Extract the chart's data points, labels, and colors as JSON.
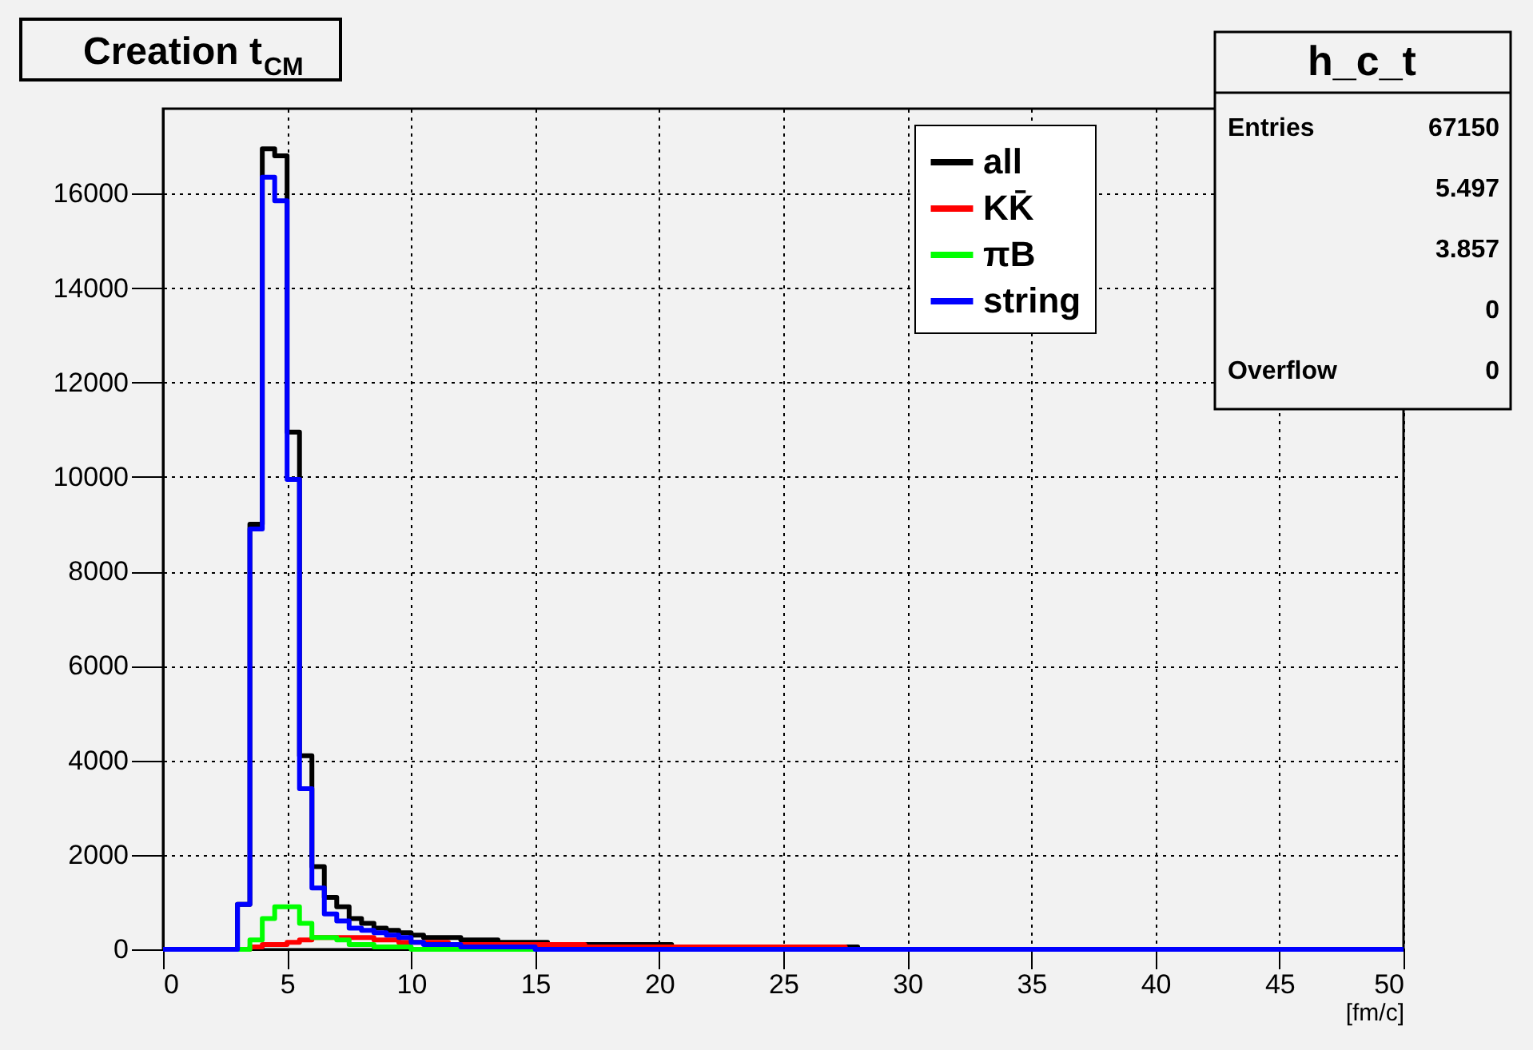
{
  "chart_data": {
    "type": "histogram",
    "title": "Creation t$_{CM}$",
    "xlabel": "[fm/c]",
    "bins": [
      0,
      0.5,
      1,
      1.5,
      2,
      2.5,
      3,
      3.5,
      4,
      4.5,
      5,
      5.5,
      6,
      6.5,
      7,
      7.5,
      8,
      8.5,
      9,
      9.5,
      10,
      10.5,
      11,
      11.5,
      12,
      12.5,
      13,
      13.5,
      14,
      14.5,
      15,
      15.5,
      16,
      16.5,
      17,
      17.5,
      18,
      18.5,
      19,
      19.5,
      20,
      20.5,
      21,
      21.5,
      22,
      22.5,
      23,
      23.5,
      24,
      24.5,
      25,
      25.5,
      26,
      26.5,
      27,
      27.5,
      28,
      28.5,
      29,
      29.5,
      30,
      30.5,
      31,
      31.5,
      32,
      32.5,
      33,
      33.5,
      34,
      34.5,
      35,
      35.5,
      36,
      36.5,
      37,
      37.5,
      38,
      38.5,
      39,
      39.5,
      40,
      40.5,
      41,
      41.5,
      42,
      42.5,
      43,
      43.5,
      44,
      44.5,
      45,
      45.5,
      46,
      46.5,
      47,
      47.5,
      48,
      48.5,
      49,
      49.5,
      50
    ],
    "series": [
      {
        "name": "all",
        "color": "#000000",
        "values": [
          0,
          0,
          0,
          0,
          0,
          0,
          950,
          9000,
          16950,
          16800,
          10950,
          4100,
          1750,
          1100,
          900,
          650,
          550,
          450,
          400,
          350,
          300,
          250,
          250,
          250,
          200,
          200,
          200,
          150,
          150,
          150,
          150,
          100,
          100,
          100,
          100,
          100,
          100,
          100,
          100,
          100,
          100,
          50,
          50,
          50,
          50,
          50,
          50,
          50,
          50,
          50,
          50,
          50,
          50,
          50,
          50,
          50,
          0,
          0,
          0,
          0,
          0,
          0,
          0,
          0,
          0,
          0,
          0,
          0,
          0,
          0,
          0,
          0,
          0,
          0,
          0,
          0,
          0,
          0,
          0,
          0,
          0,
          0,
          0,
          0,
          0,
          0,
          0,
          0,
          0,
          0,
          0,
          0,
          0,
          0,
          0,
          0,
          0,
          0,
          0,
          0
        ]
      },
      {
        "name": "KK̄",
        "color": "#ff0000",
        "values": [
          0,
          0,
          0,
          0,
          0,
          0,
          0,
          50,
          100,
          100,
          150,
          200,
          250,
          250,
          250,
          250,
          250,
          200,
          200,
          150,
          150,
          150,
          150,
          100,
          100,
          100,
          100,
          100,
          100,
          100,
          100,
          100,
          100,
          100,
          50,
          50,
          50,
          50,
          50,
          50,
          50,
          50,
          50,
          50,
          50,
          50,
          50,
          50,
          50,
          50,
          50,
          50,
          50,
          50,
          50,
          0,
          0,
          0,
          0,
          0,
          0,
          0,
          0,
          0,
          0,
          0,
          0,
          0,
          0,
          0,
          0,
          0,
          0,
          0,
          0,
          0,
          0,
          0,
          0,
          0,
          0,
          0,
          0,
          0,
          0,
          0,
          0,
          0,
          0,
          0,
          0,
          0,
          0,
          0,
          0,
          0,
          0,
          0,
          0,
          0
        ]
      },
      {
        "name": "πB",
        "color": "#00ff00",
        "values": [
          0,
          0,
          0,
          0,
          0,
          0,
          0,
          200,
          650,
          900,
          900,
          550,
          250,
          250,
          200,
          100,
          100,
          50,
          50,
          50,
          0,
          0,
          0,
          0,
          0,
          0,
          0,
          0,
          0,
          0,
          0,
          0,
          0,
          0,
          0,
          0,
          0,
          0,
          0,
          0,
          0,
          0,
          0,
          0,
          0,
          0,
          0,
          0,
          0,
          0,
          0,
          0,
          0,
          0,
          0,
          0,
          0,
          0,
          0,
          0,
          0,
          0,
          0,
          0,
          0,
          0,
          0,
          0,
          0,
          0,
          0,
          0,
          0,
          0,
          0,
          0,
          0,
          0,
          0,
          0,
          0,
          0,
          0,
          0,
          0,
          0,
          0,
          0,
          0,
          0,
          0,
          0,
          0,
          0,
          0,
          0,
          0,
          0,
          0,
          0
        ]
      },
      {
        "name": "string",
        "color": "#0000ff",
        "values": [
          0,
          0,
          0,
          0,
          0,
          0,
          950,
          8900,
          16350,
          15850,
          9950,
          3400,
          1300,
          750,
          600,
          450,
          400,
          350,
          300,
          250,
          150,
          100,
          100,
          100,
          50,
          50,
          50,
          50,
          50,
          50,
          0,
          0,
          0,
          0,
          0,
          0,
          0,
          0,
          0,
          0,
          0,
          0,
          0,
          0,
          0,
          0,
          0,
          0,
          0,
          0,
          0,
          0,
          0,
          0,
          0,
          0,
          0,
          0,
          0,
          0,
          0,
          0,
          0,
          0,
          0,
          0,
          0,
          0,
          0,
          0,
          0,
          0,
          0,
          0,
          0,
          0,
          0,
          0,
          0,
          0,
          0,
          0,
          0,
          0,
          0,
          0,
          0,
          0,
          0,
          0,
          0,
          0,
          0,
          0,
          0,
          0,
          0,
          0,
          0,
          0
        ]
      }
    ],
    "xlim": [
      0,
      50
    ],
    "xticks": [
      0,
      5,
      10,
      15,
      20,
      25,
      30,
      35,
      40,
      45,
      50
    ],
    "ylim": [
      0,
      17800
    ],
    "yticks": [
      0,
      2000,
      4000,
      6000,
      8000,
      10000,
      12000,
      14000,
      16000
    ],
    "grid": true,
    "legend": "top right",
    "annotations": [
      "h_c_t",
      "Entries 67150",
      "5.497",
      "3.857",
      "0",
      "Overflow 0"
    ]
  }
}
